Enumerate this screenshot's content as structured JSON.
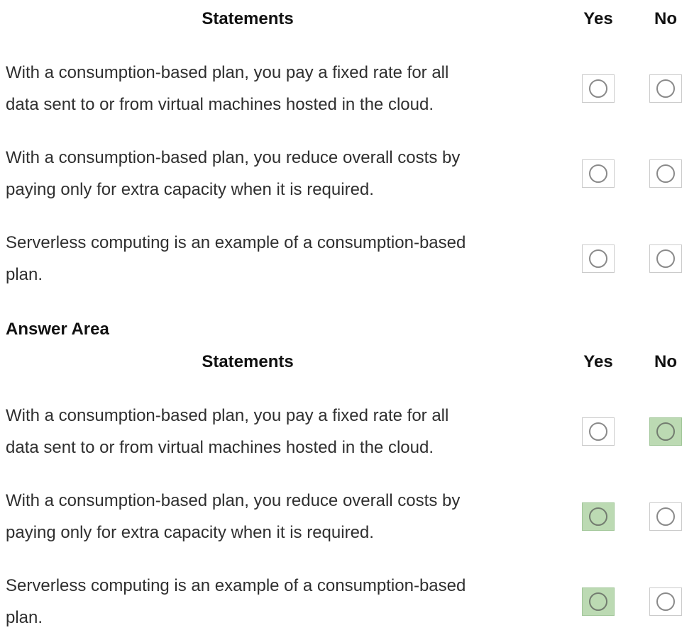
{
  "colors": {
    "selected_fill": "#bcdab3",
    "selected_border": "#a2c79a",
    "box_border": "#cbcbcb",
    "circle_border": "#8a8a8a",
    "text": "#2f2f2f",
    "heading": "#111111"
  },
  "question_table": {
    "headers": {
      "statements": "Statements",
      "yes": "Yes",
      "no": "No"
    },
    "rows": [
      {
        "line1": "With a consumption-based plan, you pay a fixed rate for all",
        "line2": "data sent to or from virtual machines hosted in the cloud.",
        "yes_selected": false,
        "no_selected": false
      },
      {
        "line1": "With a consumption-based plan, you reduce overall costs by",
        "line2": "paying only for extra capacity when it is required.",
        "yes_selected": false,
        "no_selected": false
      },
      {
        "line1": "Serverless computing is an example of a consumption-based",
        "line2": "plan.",
        "yes_selected": false,
        "no_selected": false
      }
    ]
  },
  "answer_section": {
    "title": "Answer Area",
    "table": {
      "headers": {
        "statements": "Statements",
        "yes": "Yes",
        "no": "No"
      },
      "rows": [
        {
          "line1": "With a consumption-based plan, you pay a fixed rate for all",
          "line2": "data sent to or from virtual machines hosted in the cloud.",
          "yes_selected": false,
          "no_selected": true
        },
        {
          "line1": "With a consumption-based plan, you reduce overall costs by",
          "line2": "paying only for extra capacity when it is required.",
          "yes_selected": true,
          "no_selected": false
        },
        {
          "line1": "Serverless computing is an example of a consumption-based",
          "line2": "plan.",
          "yes_selected": true,
          "no_selected": false
        }
      ]
    }
  }
}
